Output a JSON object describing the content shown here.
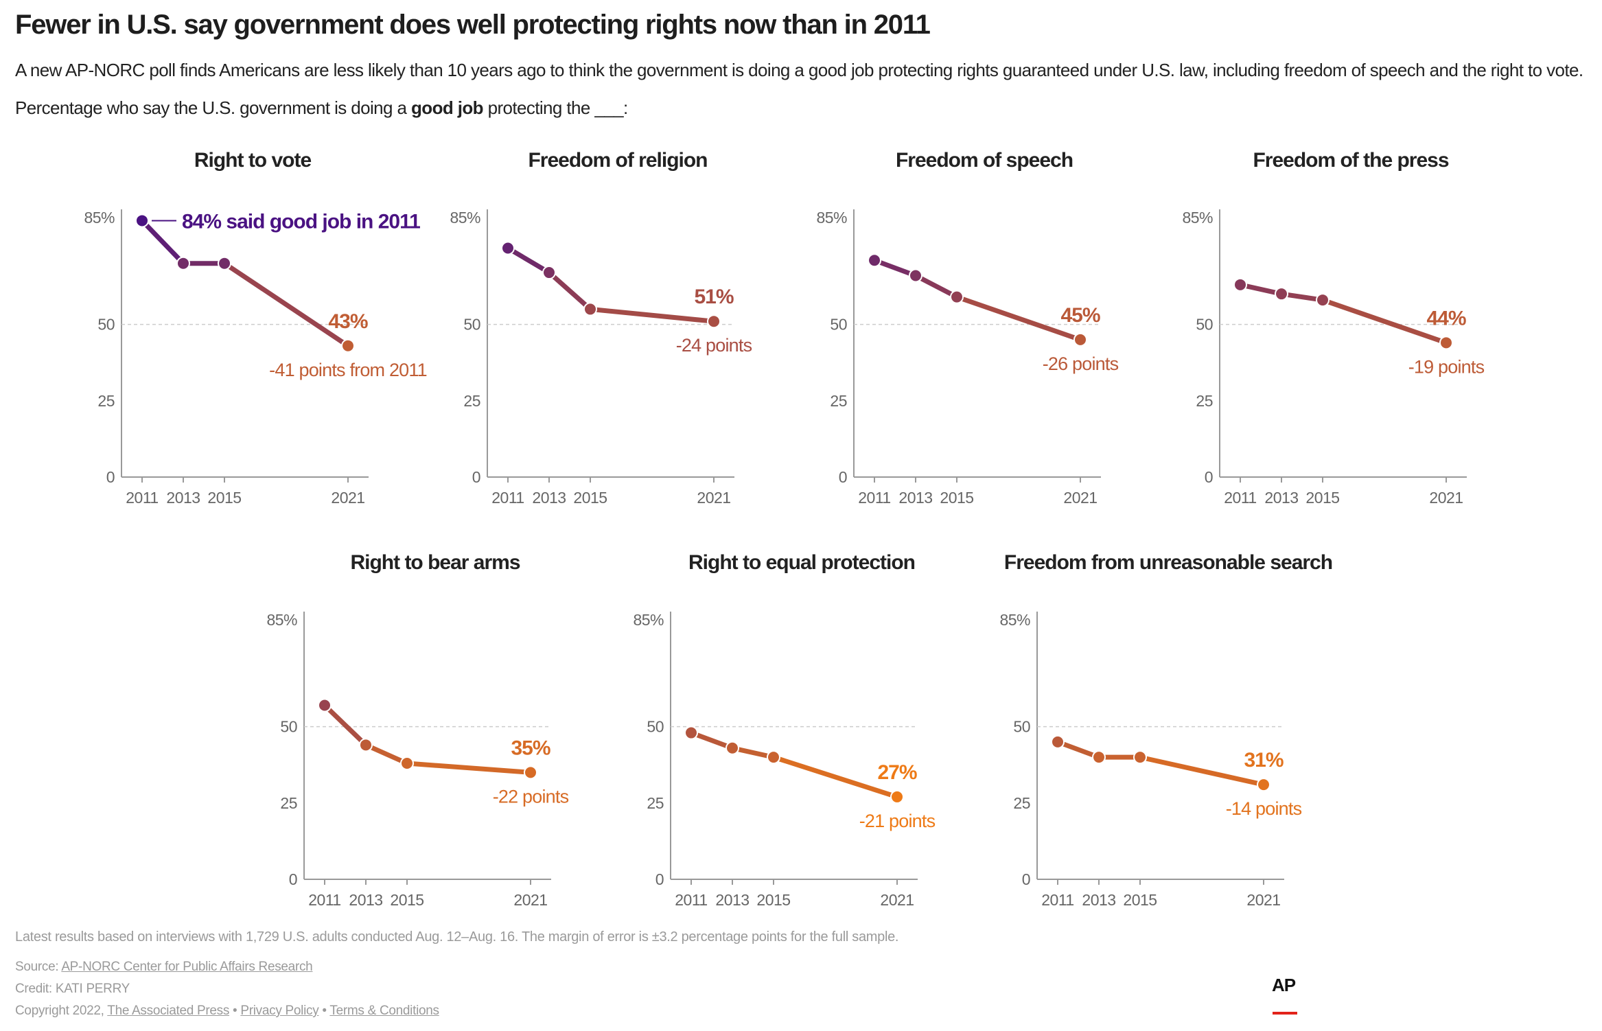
{
  "headline": "Fewer in U.S. say government does well protecting rights now than in 2011",
  "dek": "A new AP-NORC poll finds Americans are less likely than 10 years ago to think the government is doing a good job protecting rights guaranteed under U.S. law, including freedom of speech and the right to vote.",
  "prompt": {
    "before": "Percentage who say the U.S. government is doing a ",
    "bold": "good job",
    "after": " protecting the ___:"
  },
  "chart_data": [
    {
      "type": "line",
      "title": "Right to vote",
      "x": [
        2011,
        2013,
        2015,
        2021
      ],
      "values": [
        84,
        70,
        70,
        43
      ],
      "ylim": [
        0,
        85
      ],
      "yticks": [
        "0",
        "25",
        "50",
        "85%"
      ],
      "xticks": [
        "2011",
        "2013",
        "2015",
        "2021"
      ],
      "end_label": "43%",
      "change_label": "-41 points from 2011",
      "first_label": "84% said good job in 2011"
    },
    {
      "type": "line",
      "title": "Freedom of religion",
      "x": [
        2011,
        2013,
        2015,
        2021
      ],
      "values": [
        75,
        67,
        55,
        51
      ],
      "ylim": [
        0,
        85
      ],
      "yticks": [
        "0",
        "25",
        "50",
        "85%"
      ],
      "xticks": [
        "2011",
        "2013",
        "2015",
        "2021"
      ],
      "end_label": "51%",
      "change_label": "-24 points"
    },
    {
      "type": "line",
      "title": "Freedom of speech",
      "x": [
        2011,
        2013,
        2015,
        2021
      ],
      "values": [
        71,
        66,
        59,
        45
      ],
      "ylim": [
        0,
        85
      ],
      "yticks": [
        "0",
        "25",
        "50",
        "85%"
      ],
      "xticks": [
        "2011",
        "2013",
        "2015",
        "2021"
      ],
      "end_label": "45%",
      "change_label": "-26 points"
    },
    {
      "type": "line",
      "title": "Freedom of the press",
      "x": [
        2011,
        2013,
        2015,
        2021
      ],
      "values": [
        63,
        60,
        58,
        44
      ],
      "ylim": [
        0,
        85
      ],
      "yticks": [
        "0",
        "25",
        "50",
        "85%"
      ],
      "xticks": [
        "2011",
        "2013",
        "2015",
        "2021"
      ],
      "end_label": "44%",
      "change_label": "-19 points"
    },
    {
      "type": "line",
      "title": "Right to bear arms",
      "x": [
        2011,
        2013,
        2015,
        2021
      ],
      "values": [
        57,
        44,
        38,
        35
      ],
      "ylim": [
        0,
        85
      ],
      "yticks": [
        "0",
        "25",
        "50",
        "85%"
      ],
      "xticks": [
        "2011",
        "2013",
        "2015",
        "2021"
      ],
      "end_label": "35%",
      "change_label": "-22 points"
    },
    {
      "type": "line",
      "title": "Right to equal protection",
      "x": [
        2011,
        2013,
        2015,
        2021
      ],
      "values": [
        48,
        43,
        40,
        27
      ],
      "ylim": [
        0,
        85
      ],
      "yticks": [
        "0",
        "25",
        "50",
        "85%"
      ],
      "xticks": [
        "2011",
        "2013",
        "2015",
        "2021"
      ],
      "end_label": "27%",
      "change_label": "-21 points"
    },
    {
      "type": "line",
      "title": "Freedom from unreasonable search",
      "x": [
        2011,
        2013,
        2015,
        2021
      ],
      "values": [
        45,
        40,
        40,
        31
      ],
      "ylim": [
        0,
        85
      ],
      "yticks": [
        "0",
        "25",
        "50",
        "85%"
      ],
      "xticks": [
        "2011",
        "2013",
        "2015",
        "2021"
      ],
      "end_label": "31%",
      "change_label": "-14 points"
    }
  ],
  "footer": {
    "note": "Latest results based on interviews with 1,729 U.S. adults conducted Aug. 12–Aug. 16. The margin of error is ±3.2 percentage points for the full sample.",
    "source_prefix": "Source: ",
    "source_link": "AP-NORC Center for Public Affairs Research",
    "credit": "Credit: KATI PERRY",
    "copyright_prefix": "Copyright 2022, ",
    "copyright_link": "The Associated Press",
    "sep": " • ",
    "privacy": "Privacy Policy",
    "terms": "Terms & Conditions"
  },
  "logo": "AP",
  "colors": {
    "high": "#4a1282",
    "low": "#ee7a16",
    "axis": "#999999",
    "gridline": "#cccccc"
  }
}
